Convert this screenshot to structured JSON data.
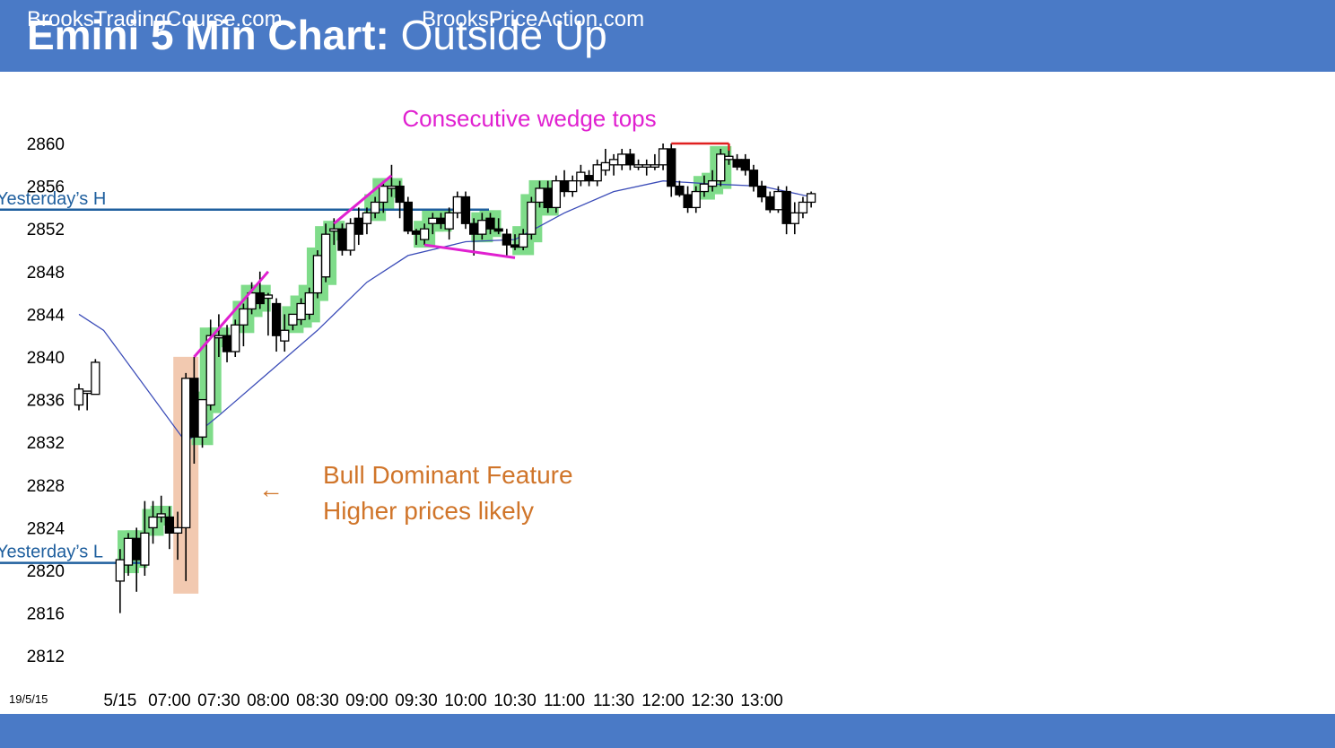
{
  "header": {
    "title_bold": "Emini 5 Min Chart:",
    "title_rest": "Outside Up"
  },
  "footer": {
    "left_link": "BrooksTradingCourse.com",
    "right_link": "BrooksPriceAction.com"
  },
  "colors": {
    "header_bg": "#4a7ac6",
    "bull_body": "#ffffff",
    "bear_body": "#000000",
    "highlight_green": "#7fdc8a",
    "highlight_salmon": "#f2c9b0",
    "moving_average": "#3b4cb8",
    "wedge_line": "#e020d0",
    "resistance_line": "#e02020",
    "yesterday_line": "#1f5f9e",
    "annotation_pink": "#e020d0",
    "annotation_orange": "#d0752a"
  },
  "chart_data": {
    "type": "candlestick",
    "date_label": "19/5/15",
    "y_ticks": [
      2860,
      2856,
      2852,
      2848,
      2844,
      2840,
      2836,
      2832,
      2828,
      2824,
      2820,
      2816,
      2812
    ],
    "ylim": [
      2809,
      2864
    ],
    "x_ticks": [
      "5/15",
      "07:00",
      "07:30",
      "08:00",
      "08:30",
      "09:00",
      "09:30",
      "10:00",
      "10:30",
      "11:00",
      "11:30",
      "12:00",
      "12:30",
      "13:00"
    ],
    "x_tick_bars": [
      5,
      11,
      17,
      23,
      29,
      35,
      41,
      47,
      53,
      59,
      65,
      71,
      77,
      83
    ],
    "levels": [
      {
        "label": "Yesterday’s H",
        "value": 2853.8
      },
      {
        "label": "Yesterday’s L",
        "value": 2820.7
      }
    ],
    "annotations": [
      {
        "text": "Consecutive wedge tops",
        "color": "pink"
      },
      {
        "text": "Bull Dominant Feature",
        "color": "orange"
      },
      {
        "text": "Higher prices likely",
        "color": "orange"
      },
      {
        "text": "←",
        "color": "orange"
      }
    ],
    "candles": [
      {
        "i": 0,
        "o": 2835.5,
        "h": 2837.5,
        "l": 2835,
        "c": 2837
      },
      {
        "i": 1,
        "o": 2836.8,
        "h": 2836.8,
        "l": 2835,
        "c": 2836.8
      },
      {
        "i": 2,
        "o": 2836.5,
        "h": 2839.8,
        "l": 2836.5,
        "c": 2839.5
      },
      {
        "i": 5,
        "o": 2819,
        "h": 2822,
        "l": 2816,
        "c": 2821
      },
      {
        "i": 6,
        "o": 2820.5,
        "h": 2823.5,
        "l": 2819.5,
        "c": 2823
      },
      {
        "i": 7,
        "o": 2823,
        "h": 2824,
        "l": 2818,
        "c": 2821
      },
      {
        "i": 8,
        "o": 2820.5,
        "h": 2826.5,
        "l": 2819.5,
        "c": 2823.5
      },
      {
        "i": 9,
        "o": 2824,
        "h": 2826.5,
        "l": 2822.5,
        "c": 2825
      },
      {
        "i": 10,
        "o": 2825,
        "h": 2827,
        "l": 2824.5,
        "c": 2825.3
      },
      {
        "i": 11,
        "o": 2825,
        "h": 2826,
        "l": 2822,
        "c": 2823.5
      },
      {
        "i": 12,
        "o": 2823.5,
        "h": 2825.5,
        "l": 2821,
        "c": 2824
      },
      {
        "i": 13,
        "o": 2824,
        "h": 2838.5,
        "l": 2819,
        "c": 2838
      },
      {
        "i": 14,
        "o": 2838,
        "h": 2840,
        "l": 2830,
        "c": 2832.5
      },
      {
        "i": 15,
        "o": 2832.5,
        "h": 2836,
        "l": 2831.5,
        "c": 2836
      },
      {
        "i": 16,
        "o": 2835.5,
        "h": 2843.5,
        "l": 2835,
        "c": 2842
      },
      {
        "i": 17,
        "o": 2842,
        "h": 2844,
        "l": 2840,
        "c": 2842
      },
      {
        "i": 18,
        "o": 2842,
        "h": 2843,
        "l": 2839.5,
        "c": 2840.5
      },
      {
        "i": 19,
        "o": 2840.5,
        "h": 2843.5,
        "l": 2840,
        "c": 2843
      },
      {
        "i": 20,
        "o": 2843,
        "h": 2845,
        "l": 2841,
        "c": 2844.5
      },
      {
        "i": 21,
        "o": 2844.5,
        "h": 2847,
        "l": 2844,
        "c": 2846
      },
      {
        "i": 22,
        "o": 2846,
        "h": 2848,
        "l": 2844.5,
        "c": 2845
      },
      {
        "i": 23,
        "o": 2845.5,
        "h": 2846,
        "l": 2842,
        "c": 2845.8
      },
      {
        "i": 24,
        "o": 2845,
        "h": 2845.5,
        "l": 2840.5,
        "c": 2842
      },
      {
        "i": 25,
        "o": 2841.5,
        "h": 2844,
        "l": 2840.5,
        "c": 2842.5
      },
      {
        "i": 26,
        "o": 2843,
        "h": 2844,
        "l": 2842.5,
        "c": 2844
      },
      {
        "i": 27,
        "o": 2843.5,
        "h": 2845.5,
        "l": 2843,
        "c": 2845
      },
      {
        "i": 28,
        "o": 2844,
        "h": 2846.5,
        "l": 2843.5,
        "c": 2846
      },
      {
        "i": 29,
        "o": 2846,
        "h": 2850,
        "l": 2845.5,
        "c": 2849.5
      },
      {
        "i": 30,
        "o": 2847.5,
        "h": 2852.5,
        "l": 2847,
        "c": 2851.5
      },
      {
        "i": 31,
        "o": 2852,
        "h": 2853,
        "l": 2850.5,
        "c": 2852
      },
      {
        "i": 32,
        "o": 2852,
        "h": 2852.5,
        "l": 2849.5,
        "c": 2850
      },
      {
        "i": 33,
        "o": 2850,
        "h": 2853,
        "l": 2849.5,
        "c": 2852.5
      },
      {
        "i": 34,
        "o": 2853,
        "h": 2854,
        "l": 2850.5,
        "c": 2851.5
      },
      {
        "i": 35,
        "o": 2852.5,
        "h": 2854,
        "l": 2851.5,
        "c": 2853.5
      },
      {
        "i": 36,
        "o": 2853.5,
        "h": 2855,
        "l": 2853,
        "c": 2854.5
      },
      {
        "i": 37,
        "o": 2854.5,
        "h": 2856.5,
        "l": 2853.5,
        "c": 2856
      },
      {
        "i": 38,
        "o": 2856,
        "h": 2858,
        "l": 2855,
        "c": 2856
      },
      {
        "i": 39,
        "o": 2856,
        "h": 2856.5,
        "l": 2853,
        "c": 2854.5
      },
      {
        "i": 40,
        "o": 2854.5,
        "h": 2855,
        "l": 2851.5,
        "c": 2851.8
      },
      {
        "i": 41,
        "o": 2851.8,
        "h": 2852,
        "l": 2850.5,
        "c": 2851.5
      },
      {
        "i": 42,
        "o": 2851,
        "h": 2852.5,
        "l": 2850.5,
        "c": 2852
      },
      {
        "i": 43,
        "o": 2852.5,
        "h": 2853.5,
        "l": 2851.5,
        "c": 2853
      },
      {
        "i": 44,
        "o": 2853,
        "h": 2853.5,
        "l": 2852,
        "c": 2852.5
      },
      {
        "i": 45,
        "o": 2852,
        "h": 2854,
        "l": 2851,
        "c": 2853.5
      },
      {
        "i": 46,
        "o": 2853.5,
        "h": 2855.5,
        "l": 2853,
        "c": 2855
      },
      {
        "i": 47,
        "o": 2855,
        "h": 2855.5,
        "l": 2852,
        "c": 2852.5
      },
      {
        "i": 48,
        "o": 2852.5,
        "h": 2853,
        "l": 2849.5,
        "c": 2851.5
      },
      {
        "i": 49,
        "o": 2851.5,
        "h": 2853.5,
        "l": 2851,
        "c": 2852.8
      },
      {
        "i": 50,
        "o": 2853,
        "h": 2853.5,
        "l": 2851.5,
        "c": 2852
      },
      {
        "i": 51,
        "o": 2852,
        "h": 2853,
        "l": 2851.5,
        "c": 2851.8
      },
      {
        "i": 52,
        "o": 2851.5,
        "h": 2852,
        "l": 2849.5,
        "c": 2850.5
      },
      {
        "i": 53,
        "o": 2850.5,
        "h": 2851.5,
        "l": 2850,
        "c": 2850.3
      },
      {
        "i": 54,
        "o": 2850.3,
        "h": 2852,
        "l": 2850,
        "c": 2851.5
      },
      {
        "i": 55,
        "o": 2851.5,
        "h": 2855,
        "l": 2851,
        "c": 2854.5
      },
      {
        "i": 56,
        "o": 2854.5,
        "h": 2856.5,
        "l": 2854,
        "c": 2855.8
      },
      {
        "i": 57,
        "o": 2855.8,
        "h": 2856.5,
        "l": 2853.5,
        "c": 2854
      },
      {
        "i": 58,
        "o": 2854,
        "h": 2857,
        "l": 2853.5,
        "c": 2856.5
      },
      {
        "i": 59,
        "o": 2856.5,
        "h": 2857.5,
        "l": 2855,
        "c": 2855.5
      },
      {
        "i": 60,
        "o": 2855.5,
        "h": 2857,
        "l": 2855,
        "c": 2856.5
      },
      {
        "i": 61,
        "o": 2856.5,
        "h": 2858,
        "l": 2856,
        "c": 2857.3
      },
      {
        "i": 62,
        "o": 2857,
        "h": 2857.5,
        "l": 2856,
        "c": 2856.5
      },
      {
        "i": 63,
        "o": 2856.5,
        "h": 2858.5,
        "l": 2856,
        "c": 2858
      },
      {
        "i": 64,
        "o": 2857.5,
        "h": 2859.5,
        "l": 2857,
        "c": 2858.2
      },
      {
        "i": 65,
        "o": 2858,
        "h": 2859,
        "l": 2857,
        "c": 2858.5
      },
      {
        "i": 66,
        "o": 2858,
        "h": 2859.5,
        "l": 2857.5,
        "c": 2859
      },
      {
        "i": 67,
        "o": 2859,
        "h": 2859.5,
        "l": 2857.5,
        "c": 2858
      },
      {
        "i": 68,
        "o": 2858,
        "h": 2858.5,
        "l": 2857.5,
        "c": 2858
      },
      {
        "i": 69,
        "o": 2858,
        "h": 2858.5,
        "l": 2857,
        "c": 2858
      },
      {
        "i": 70,
        "o": 2858,
        "h": 2859,
        "l": 2857.5,
        "c": 2858
      },
      {
        "i": 71,
        "o": 2858,
        "h": 2860,
        "l": 2857.5,
        "c": 2859.5
      },
      {
        "i": 72,
        "o": 2859.5,
        "h": 2860,
        "l": 2855,
        "c": 2856
      },
      {
        "i": 73,
        "o": 2856,
        "h": 2856.5,
        "l": 2855,
        "c": 2855.2
      },
      {
        "i": 74,
        "o": 2855.2,
        "h": 2856,
        "l": 2853.5,
        "c": 2854
      },
      {
        "i": 75,
        "o": 2854,
        "h": 2856,
        "l": 2853.5,
        "c": 2855.5
      },
      {
        "i": 76,
        "o": 2855.5,
        "h": 2857,
        "l": 2855,
        "c": 2856.2
      },
      {
        "i": 77,
        "o": 2856,
        "h": 2857.5,
        "l": 2855.5,
        "c": 2856.5
      },
      {
        "i": 78,
        "o": 2856.5,
        "h": 2859.5,
        "l": 2856,
        "c": 2859
      },
      {
        "i": 79,
        "o": 2858.5,
        "h": 2859.5,
        "l": 2858,
        "c": 2858.8
      },
      {
        "i": 80,
        "o": 2858.5,
        "h": 2859,
        "l": 2857.5,
        "c": 2857.8
      },
      {
        "i": 81,
        "o": 2858.5,
        "h": 2859,
        "l": 2857,
        "c": 2857.5
      },
      {
        "i": 82,
        "o": 2857.5,
        "h": 2858,
        "l": 2855.5,
        "c": 2856
      },
      {
        "i": 83,
        "o": 2856,
        "h": 2856.5,
        "l": 2854.5,
        "c": 2855
      },
      {
        "i": 84,
        "o": 2855,
        "h": 2855.5,
        "l": 2853.5,
        "c": 2853.8
      },
      {
        "i": 85,
        "o": 2853.8,
        "h": 2856,
        "l": 2853.5,
        "c": 2855.5
      },
      {
        "i": 86,
        "o": 2855.5,
        "h": 2856,
        "l": 2851.5,
        "c": 2852.5
      },
      {
        "i": 87,
        "o": 2852.5,
        "h": 2854.5,
        "l": 2851.5,
        "c": 2853.5
      },
      {
        "i": 88,
        "o": 2853.5,
        "h": 2855,
        "l": 2853,
        "c": 2854.5
      },
      {
        "i": 89,
        "o": 2854.5,
        "h": 2855.5,
        "l": 2854,
        "c": 2855.3
      }
    ],
    "moving_average": [
      [
        0,
        2844
      ],
      [
        3,
        2842.5
      ],
      [
        13,
        2832
      ],
      [
        17,
        2834.5
      ],
      [
        23,
        2838.5
      ],
      [
        29,
        2842.5
      ],
      [
        35,
        2847
      ],
      [
        40,
        2849.5
      ],
      [
        47,
        2850.8
      ],
      [
        53,
        2851
      ],
      [
        59,
        2853.5
      ],
      [
        65,
        2855.5
      ],
      [
        71,
        2856.5
      ],
      [
        77,
        2856.2
      ],
      [
        83,
        2856
      ],
      [
        89,
        2855
      ]
    ],
    "highlight_bars": [
      6,
      7,
      9,
      10,
      15,
      16,
      17,
      20,
      21,
      22,
      26,
      27,
      28,
      29,
      30,
      31,
      36,
      37,
      38,
      42,
      43,
      44,
      49,
      50,
      54,
      55,
      56,
      57,
      76,
      77,
      78
    ],
    "dominant_bar": 13,
    "wedge_lines": [
      [
        [
          14,
          2840
        ],
        [
          23,
          2848
        ]
      ],
      [
        [
          31,
          2852.5
        ],
        [
          38,
          2857
        ]
      ],
      [
        [
          42,
          2850.5
        ],
        [
          53,
          2849.3
        ]
      ]
    ],
    "resistance_line": [
      [
        72,
        2860
      ],
      [
        79,
        2860
      ]
    ]
  }
}
